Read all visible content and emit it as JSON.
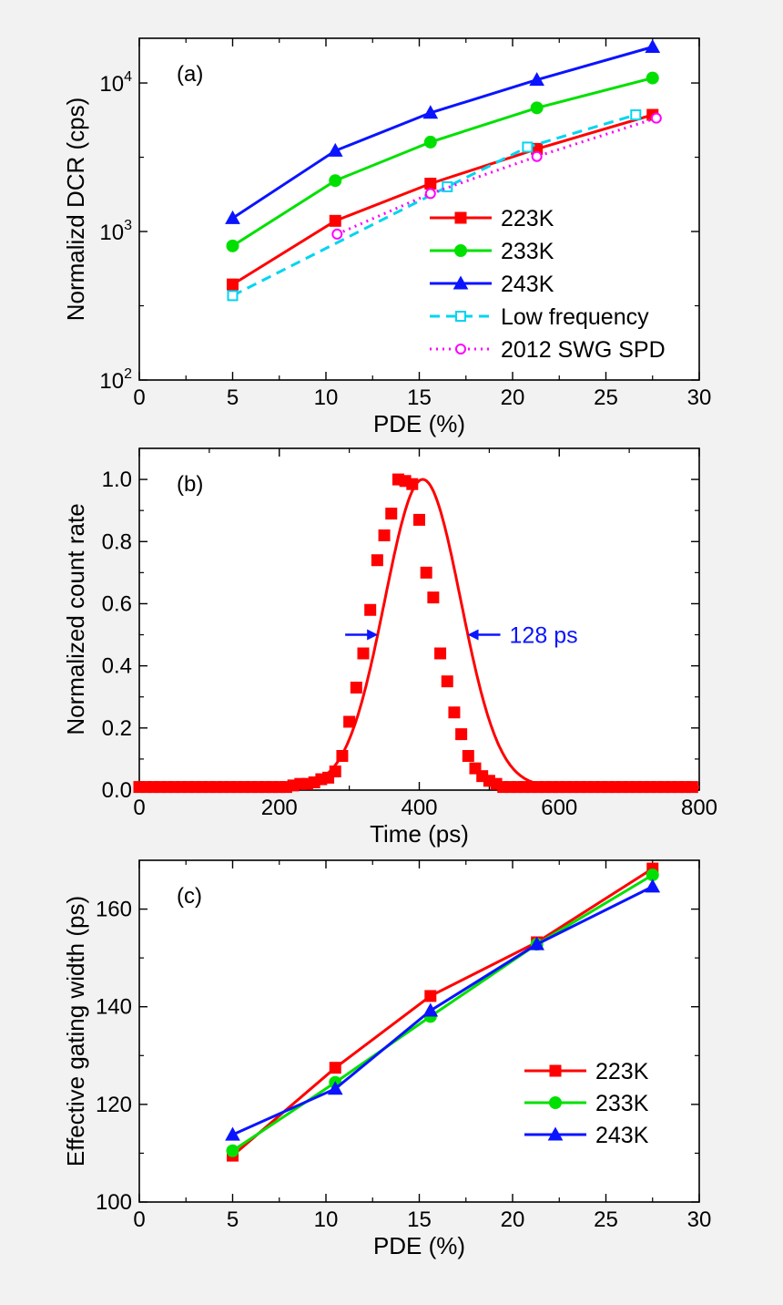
{
  "chart_data": [
    {
      "id": "a",
      "type": "line",
      "panel_label": "(a)",
      "xlabel": "PDE (%)",
      "ylabel": "Normalizd DCR (cps)",
      "xlim": [
        0,
        30
      ],
      "ylim": [
        100,
        20000
      ],
      "y_scale": "log",
      "xticks": [
        0,
        5,
        10,
        15,
        20,
        25,
        30
      ],
      "xtick_labels": [
        "0",
        "5",
        "10",
        "15",
        "20",
        "25",
        "30"
      ],
      "yticks": [
        100,
        1000,
        10000
      ],
      "ytick_labels": [
        {
          "base": "10",
          "exp": "2"
        },
        {
          "base": "10",
          "exp": "3"
        },
        {
          "base": "10",
          "exp": "4"
        }
      ],
      "grid": false,
      "legend_position": "bottom-right",
      "series": [
        {
          "name": "223K",
          "color": "#ff0000",
          "marker": "square-filled",
          "line": "solid",
          "x": [
            5,
            10.5,
            15.6,
            21.3,
            27.5
          ],
          "y": [
            440,
            1180,
            2100,
            3600,
            6100
          ]
        },
        {
          "name": "233K",
          "color": "#00e000",
          "marker": "circle-filled",
          "line": "solid",
          "x": [
            5,
            10.5,
            15.6,
            21.3,
            27.5
          ],
          "y": [
            800,
            2200,
            4000,
            6800,
            10800
          ]
        },
        {
          "name": "243K",
          "color": "#0a14ff",
          "marker": "triangle-filled",
          "line": "solid",
          "x": [
            5,
            10.5,
            15.6,
            21.3,
            27.5
          ],
          "y": [
            1230,
            3500,
            6300,
            10500,
            17500
          ]
        },
        {
          "name": "Low frequency",
          "color": "#00d5f0",
          "marker": "square-open",
          "line": "dash",
          "x": [
            5,
            16.5,
            20.8,
            26.6
          ],
          "y": [
            370,
            2000,
            3700,
            6100
          ]
        },
        {
          "name": "2012 SWG SPD",
          "color": "#ff00ff",
          "marker": "circle-open",
          "line": "dot",
          "x": [
            10.6,
            15.6,
            21.3,
            27.7
          ],
          "y": [
            960,
            1800,
            3200,
            5800
          ]
        }
      ]
    },
    {
      "id": "b",
      "type": "scatter",
      "panel_label": "(b)",
      "xlabel": "Time (ps)",
      "ylabel": "Normalized count rate",
      "xlim": [
        0,
        800
      ],
      "ylim": [
        0,
        1.1
      ],
      "xticks": [
        0,
        200,
        400,
        600,
        800
      ],
      "xtick_labels": [
        "0",
        "200",
        "400",
        "600",
        "800"
      ],
      "yticks": [
        0,
        0.2,
        0.4,
        0.6,
        0.8,
        1.0
      ],
      "ytick_labels": [
        "0.0",
        "0.2",
        "0.4",
        "0.6",
        "0.8",
        "1.0"
      ],
      "grid": false,
      "series": [
        {
          "color": "#ff0000",
          "marker": "square-filled",
          "x": [
            0,
            10,
            20,
            30,
            40,
            50,
            60,
            70,
            80,
            90,
            100,
            110,
            120,
            130,
            140,
            150,
            160,
            170,
            180,
            190,
            200,
            210,
            220,
            230,
            240,
            250,
            260,
            270,
            280,
            290,
            300,
            310,
            320,
            330,
            340,
            350,
            360,
            370,
            380,
            390,
            400,
            410,
            420,
            430,
            440,
            450,
            460,
            470,
            480,
            490,
            500,
            510,
            520,
            530,
            540,
            550,
            560,
            570,
            580,
            590,
            600,
            610,
            620,
            630,
            640,
            650,
            660,
            670,
            680,
            690,
            700,
            710,
            720,
            730,
            740,
            750,
            760,
            770,
            780,
            790
          ],
          "y": [
            0.01,
            0.01,
            0.01,
            0.01,
            0.01,
            0.01,
            0.01,
            0.01,
            0.01,
            0.01,
            0.01,
            0.01,
            0.01,
            0.01,
            0.01,
            0.01,
            0.01,
            0.01,
            0.01,
            0.01,
            0.01,
            0.01,
            0.015,
            0.02,
            0.02,
            0.025,
            0.035,
            0.04,
            0.06,
            0.11,
            0.22,
            0.33,
            0.44,
            0.58,
            0.74,
            0.82,
            0.89,
            1.0,
            0.995,
            0.985,
            0.87,
            0.7,
            0.62,
            0.44,
            0.35,
            0.25,
            0.18,
            0.11,
            0.07,
            0.045,
            0.03,
            0.02,
            0.01,
            0.01,
            0.01,
            0.01,
            0.01,
            0.01,
            0.01,
            0.01,
            0.01,
            0.01,
            0.01,
            0.01,
            0.01,
            0.01,
            0.01,
            0.01,
            0.01,
            0.01,
            0.01,
            0.01,
            0.01,
            0.01,
            0.01,
            0.01,
            0.01,
            0.01,
            0.01,
            0.01
          ]
        }
      ],
      "fit": {
        "type": "gaussian",
        "center": 405,
        "fwhm": 128,
        "amplitude": 1.0,
        "baseline": 0.01,
        "color": "#ff0000"
      },
      "annotation": {
        "text": "128 ps",
        "color": "#0a14ff",
        "y": 0.5,
        "x_left": 341,
        "x_right": 469
      }
    },
    {
      "id": "c",
      "type": "line",
      "panel_label": "(c)",
      "xlabel": "PDE (%)",
      "ylabel": "Effective gating width (ps)",
      "xlim": [
        0,
        30
      ],
      "ylim": [
        100,
        170
      ],
      "xticks": [
        0,
        5,
        10,
        15,
        20,
        25,
        30
      ],
      "xtick_labels": [
        "0",
        "5",
        "10",
        "15",
        "20",
        "25",
        "30"
      ],
      "yticks": [
        100,
        120,
        140,
        160
      ],
      "ytick_labels": [
        "100",
        "120",
        "140",
        "160"
      ],
      "grid": false,
      "legend_position": "right",
      "series": [
        {
          "name": "223K",
          "color": "#ff0000",
          "marker": "square-filled",
          "line": "solid",
          "x": [
            5.0,
            10.5,
            15.6,
            21.3,
            27.5
          ],
          "y": [
            109.5,
            127.5,
            142.2,
            153.2,
            168.3
          ]
        },
        {
          "name": "233K",
          "color": "#00e000",
          "marker": "circle-filled",
          "line": "solid",
          "x": [
            5.0,
            10.5,
            15.6,
            21.3,
            27.5
          ],
          "y": [
            110.5,
            124.5,
            138.0,
            152.8,
            167.0
          ]
        },
        {
          "name": "243K",
          "color": "#0a14ff",
          "marker": "triangle-filled",
          "line": "solid",
          "x": [
            5.0,
            10.5,
            15.6,
            21.3,
            27.5
          ],
          "y": [
            113.8,
            123.2,
            139.2,
            152.8,
            164.6
          ]
        }
      ]
    }
  ]
}
